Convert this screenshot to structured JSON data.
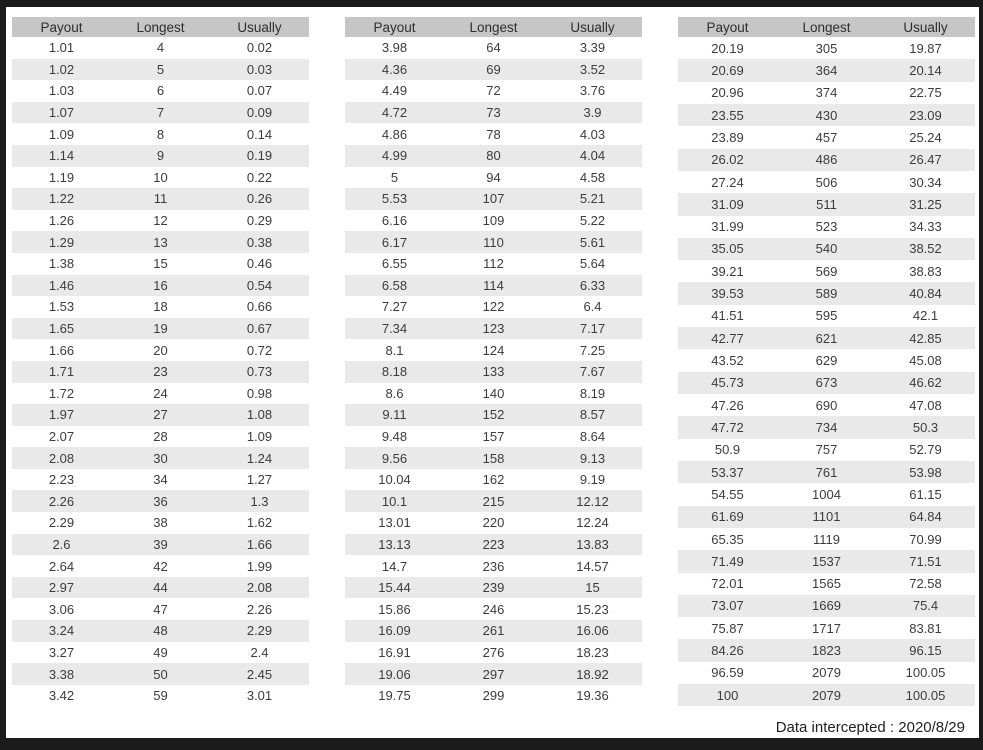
{
  "columns": [
    "Payout",
    "Longest",
    "Usually"
  ],
  "tables": [
    {
      "name": "payout-table-low-range",
      "rows": [
        [
          "1.01",
          "4",
          "0.02"
        ],
        [
          "1.02",
          "5",
          "0.03"
        ],
        [
          "1.03",
          "6",
          "0.07"
        ],
        [
          "1.07",
          "7",
          "0.09"
        ],
        [
          "1.09",
          "8",
          "0.14"
        ],
        [
          "1.14",
          "9",
          "0.19"
        ],
        [
          "1.19",
          "10",
          "0.22"
        ],
        [
          "1.22",
          "11",
          "0.26"
        ],
        [
          "1.26",
          "12",
          "0.29"
        ],
        [
          "1.29",
          "13",
          "0.38"
        ],
        [
          "1.38",
          "15",
          "0.46"
        ],
        [
          "1.46",
          "16",
          "0.54"
        ],
        [
          "1.53",
          "18",
          "0.66"
        ],
        [
          "1.65",
          "19",
          "0.67"
        ],
        [
          "1.66",
          "20",
          "0.72"
        ],
        [
          "1.71",
          "23",
          "0.73"
        ],
        [
          "1.72",
          "24",
          "0.98"
        ],
        [
          "1.97",
          "27",
          "1.08"
        ],
        [
          "2.07",
          "28",
          "1.09"
        ],
        [
          "2.08",
          "30",
          "1.24"
        ],
        [
          "2.23",
          "34",
          "1.27"
        ],
        [
          "2.26",
          "36",
          "1.3"
        ],
        [
          "2.29",
          "38",
          "1.62"
        ],
        [
          "2.6",
          "39",
          "1.66"
        ],
        [
          "2.64",
          "42",
          "1.99"
        ],
        [
          "2.97",
          "44",
          "2.08"
        ],
        [
          "3.06",
          "47",
          "2.26"
        ],
        [
          "3.24",
          "48",
          "2.29"
        ],
        [
          "3.27",
          "49",
          "2.4"
        ],
        [
          "3.38",
          "50",
          "2.45"
        ],
        [
          "3.42",
          "59",
          "3.01"
        ]
      ]
    },
    {
      "name": "payout-table-mid-range",
      "rows": [
        [
          "3.98",
          "64",
          "3.39"
        ],
        [
          "4.36",
          "69",
          "3.52"
        ],
        [
          "4.49",
          "72",
          "3.76"
        ],
        [
          "4.72",
          "73",
          "3.9"
        ],
        [
          "4.86",
          "78",
          "4.03"
        ],
        [
          "4.99",
          "80",
          "4.04"
        ],
        [
          "5",
          "94",
          "4.58"
        ],
        [
          "5.53",
          "107",
          "5.21"
        ],
        [
          "6.16",
          "109",
          "5.22"
        ],
        [
          "6.17",
          "110",
          "5.61"
        ],
        [
          "6.55",
          "112",
          "5.64"
        ],
        [
          "6.58",
          "114",
          "6.33"
        ],
        [
          "7.27",
          "122",
          "6.4"
        ],
        [
          "7.34",
          "123",
          "7.17"
        ],
        [
          "8.1",
          "124",
          "7.25"
        ],
        [
          "8.18",
          "133",
          "7.67"
        ],
        [
          "8.6",
          "140",
          "8.19"
        ],
        [
          "9.11",
          "152",
          "8.57"
        ],
        [
          "9.48",
          "157",
          "8.64"
        ],
        [
          "9.56",
          "158",
          "9.13"
        ],
        [
          "10.04",
          "162",
          "9.19"
        ],
        [
          "10.1",
          "215",
          "12.12"
        ],
        [
          "13.01",
          "220",
          "12.24"
        ],
        [
          "13.13",
          "223",
          "13.83"
        ],
        [
          "14.7",
          "236",
          "14.57"
        ],
        [
          "15.44",
          "239",
          "15"
        ],
        [
          "15.86",
          "246",
          "15.23"
        ],
        [
          "16.09",
          "261",
          "16.06"
        ],
        [
          "16.91",
          "276",
          "18.23"
        ],
        [
          "19.06",
          "297",
          "18.92"
        ],
        [
          "19.75",
          "299",
          "19.36"
        ]
      ]
    },
    {
      "name": "payout-table-high-range",
      "rows": [
        [
          "20.19",
          "305",
          "19.87"
        ],
        [
          "20.69",
          "364",
          "20.14"
        ],
        [
          "20.96",
          "374",
          "22.75"
        ],
        [
          "23.55",
          "430",
          "23.09"
        ],
        [
          "23.89",
          "457",
          "25.24"
        ],
        [
          "26.02",
          "486",
          "26.47"
        ],
        [
          "27.24",
          "506",
          "30.34"
        ],
        [
          "31.09",
          "511",
          "31.25"
        ],
        [
          "31.99",
          "523",
          "34.33"
        ],
        [
          "35.05",
          "540",
          "38.52"
        ],
        [
          "39.21",
          "569",
          "38.83"
        ],
        [
          "39.53",
          "589",
          "40.84"
        ],
        [
          "41.51",
          "595",
          "42.1"
        ],
        [
          "42.77",
          "621",
          "42.85"
        ],
        [
          "43.52",
          "629",
          "45.08"
        ],
        [
          "45.73",
          "673",
          "46.62"
        ],
        [
          "47.26",
          "690",
          "47.08"
        ],
        [
          "47.72",
          "734",
          "50.3"
        ],
        [
          "50.9",
          "757",
          "52.79"
        ],
        [
          "53.37",
          "761",
          "53.98"
        ],
        [
          "54.55",
          "1004",
          "61.15"
        ],
        [
          "61.69",
          "1101",
          "64.84"
        ],
        [
          "65.35",
          "1119",
          "70.99"
        ],
        [
          "71.49",
          "1537",
          "71.51"
        ],
        [
          "72.01",
          "1565",
          "72.58"
        ],
        [
          "73.07",
          "1669",
          "75.4"
        ],
        [
          "75.87",
          "1717",
          "83.81"
        ],
        [
          "84.26",
          "1823",
          "96.15"
        ],
        [
          "96.59",
          "2079",
          "100.05"
        ],
        [
          "100",
          "2079",
          "100.05"
        ]
      ]
    }
  ],
  "footer": {
    "text": "Data intercepted : 2020/8/29"
  },
  "colors": {
    "frame_border": "#1b1b1b",
    "header_bg": "#c6c6c6",
    "stripe_bg": "#e9e9e9",
    "text": "#3c3c3c"
  }
}
